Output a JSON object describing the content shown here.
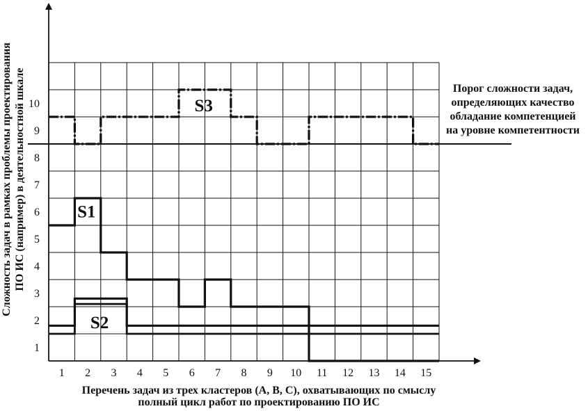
{
  "chart_data": {
    "type": "line",
    "title": "",
    "xlabel": [
      "Перечень задач из трех кластеров (А, В, С), охватывающих по смыслу",
      "полный цикл работ по проектированию ПО ИС"
    ],
    "ylabel": [
      "Сложность задач в рамках проблемы проектирования",
      "ПО ИС (например) в деятельностной шкале"
    ],
    "x_ticks": [
      "1",
      "2",
      "3",
      "4",
      "5",
      "6",
      "7",
      "8",
      "9",
      "10",
      "11",
      "12",
      "13",
      "14",
      "15"
    ],
    "y_ticks": [
      "1",
      "2",
      "3",
      "4",
      "5",
      "6",
      "7",
      "8",
      "9",
      "10"
    ],
    "xlim": [
      0,
      15
    ],
    "ylim": [
      0,
      11
    ],
    "grid": true,
    "step": true,
    "threshold": {
      "value": 8.0,
      "label": [
        "Порог сложности задач,",
        "определяющих качество",
        "обладание компетенцией",
        "на уровне компетентности"
      ]
    },
    "series": [
      {
        "name": "S1",
        "style": "solid",
        "values": [
          5.0,
          6.0,
          4.0,
          3.0,
          3.0,
          2.0,
          3.0,
          2.0,
          2.0,
          2.0,
          0.0,
          0.0,
          0.0,
          0.0,
          0.0
        ]
      },
      {
        "name": "S2",
        "style": "double",
        "upper": [
          1.3,
          2.3,
          2.3,
          1.3,
          1.3,
          1.3,
          1.3,
          1.3,
          1.3,
          1.3,
          1.3,
          1.3,
          1.3,
          1.3,
          1.3
        ],
        "lower": [
          1.0,
          2.1,
          2.1,
          1.0,
          1.0,
          1.0,
          1.0,
          1.0,
          1.0,
          1.0,
          1.0,
          1.0,
          1.0,
          1.0,
          1.0
        ]
      },
      {
        "name": "S3",
        "style": "dash-dot",
        "values": [
          9.0,
          8.0,
          9.0,
          9.0,
          9.0,
          10.0,
          10.0,
          9.0,
          8.0,
          8.0,
          9.0,
          9.0,
          9.0,
          9.0,
          8.0
        ]
      }
    ]
  }
}
